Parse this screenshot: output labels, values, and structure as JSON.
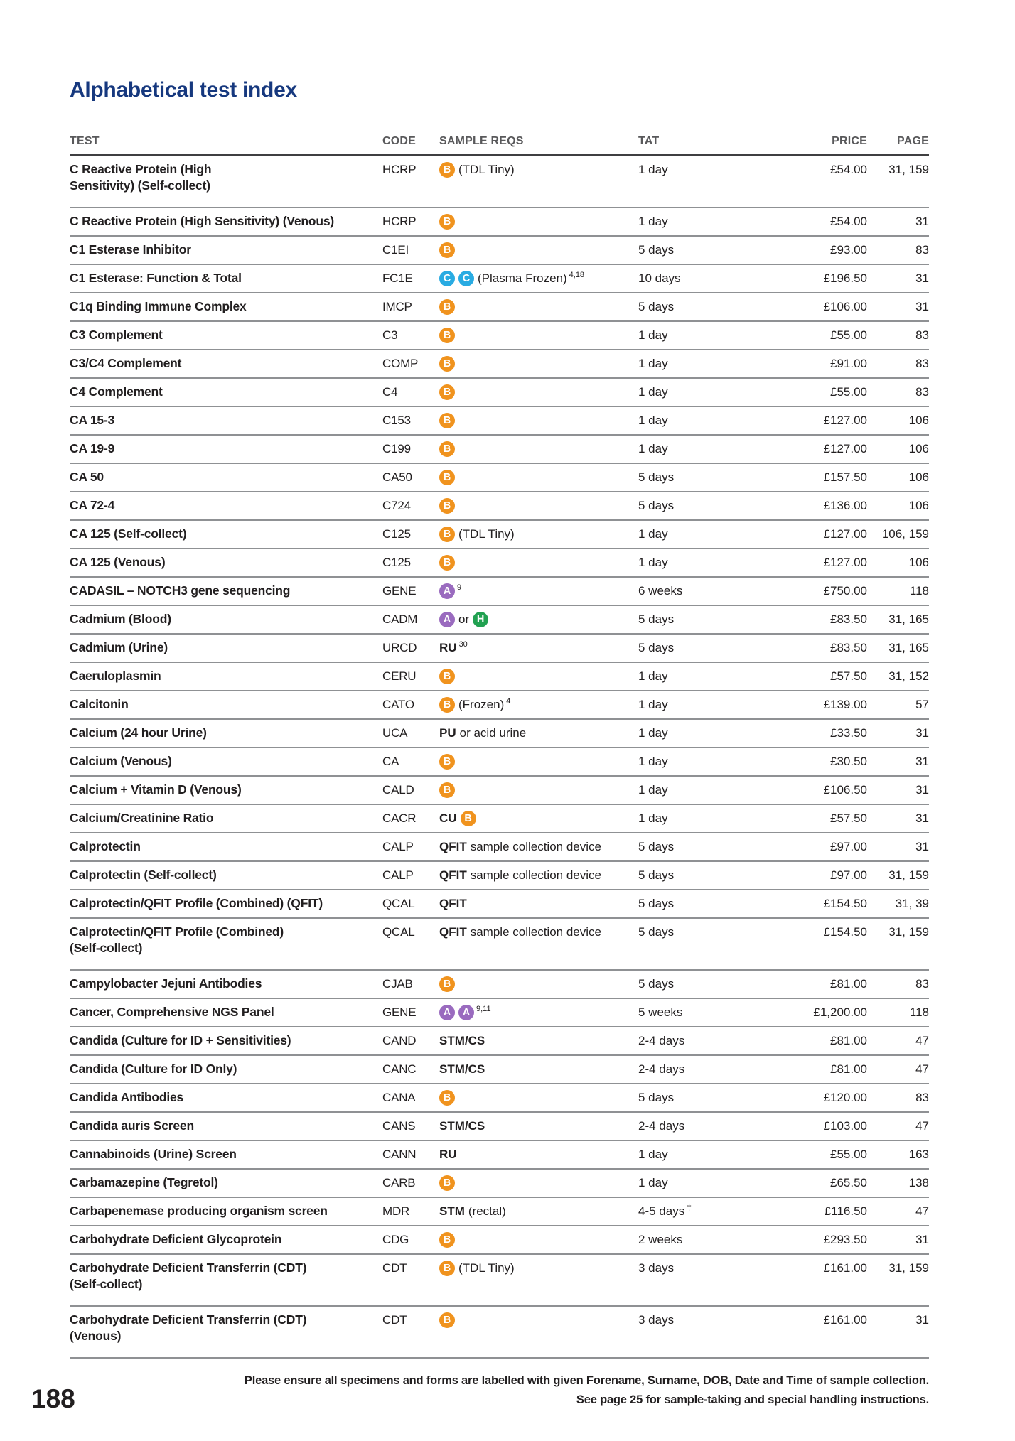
{
  "page": {
    "title": "Alphabetical test index",
    "page_number": "188",
    "footer_line1": "Please ensure all specimens and forms are labelled with given Forename, Surname, DOB, Date and Time of sample collection.",
    "footer_line2": "See page 25 for sample-taking and special handling instructions."
  },
  "colors": {
    "title_blue": "#16387E",
    "header_gray": "#59595B",
    "text_black": "#221F20",
    "icon_orange": "#F0931E",
    "icon_cyan": "#29ABE2",
    "icon_purple": "#9A6BBF",
    "icon_green": "#21A151"
  },
  "icons_legend": {
    "B": "blood-sample-icon",
    "C": "plasma-frozen-sample-icon",
    "A": "special-sample-icon",
    "H": "alternate-sample-icon"
  },
  "table": {
    "headers": [
      "TEST",
      "CODE",
      "SAMPLE REQS",
      "TAT",
      "PRICE",
      "PAGE"
    ],
    "rows": [
      {
        "name": "C Reactive Protein (High\nSensitivity) (Self-collect)",
        "code": "HCRP",
        "sample": [
          {
            "t": "i",
            "v": "B",
            "c": "orange"
          },
          {
            "t": "x",
            "v": "(TDL Tiny)"
          }
        ],
        "tat": "1 day",
        "price": "£54.00",
        "page": "31, 159"
      },
      {
        "name": "C Reactive Protein (High Sensitivity) (Venous)",
        "code": "HCRP",
        "sample": [
          {
            "t": "i",
            "v": "B",
            "c": "orange"
          }
        ],
        "tat": "1 day",
        "price": "£54.00",
        "page": "31"
      },
      {
        "name": "C1 Esterase Inhibitor",
        "code": "C1EI",
        "sample": [
          {
            "t": "i",
            "v": "B",
            "c": "orange"
          }
        ],
        "tat": "5 days",
        "price": "£93.00",
        "page": "83"
      },
      {
        "name": "C1 Esterase: Function & Total",
        "code": "FC1E",
        "sample": [
          {
            "t": "i",
            "v": "C",
            "c": "cyan"
          },
          {
            "t": "i",
            "v": "C",
            "c": "cyan"
          },
          {
            "t": "x",
            "v": "(Plasma Frozen)"
          },
          {
            "t": "s",
            "v": "4,18"
          }
        ],
        "tat": "10 days",
        "price": "£196.50",
        "page": "31"
      },
      {
        "name": "C1q Binding Immune Complex",
        "code": "IMCP",
        "sample": [
          {
            "t": "i",
            "v": "B",
            "c": "orange"
          }
        ],
        "tat": "5 days",
        "price": "£106.00",
        "page": "31"
      },
      {
        "name": "C3 Complement",
        "code": "C3",
        "sample": [
          {
            "t": "i",
            "v": "B",
            "c": "orange"
          }
        ],
        "tat": "1 day",
        "price": "£55.00",
        "page": "83"
      },
      {
        "name": "C3/C4 Complement",
        "code": "COMP",
        "sample": [
          {
            "t": "i",
            "v": "B",
            "c": "orange"
          }
        ],
        "tat": "1 day",
        "price": "£91.00",
        "page": "83"
      },
      {
        "name": "C4 Complement",
        "code": "C4",
        "sample": [
          {
            "t": "i",
            "v": "B",
            "c": "orange"
          }
        ],
        "tat": "1 day",
        "price": "£55.00",
        "page": "83"
      },
      {
        "name": "CA 15-3",
        "code": "C153",
        "sample": [
          {
            "t": "i",
            "v": "B",
            "c": "orange"
          }
        ],
        "tat": "1 day",
        "price": "£127.00",
        "page": "106"
      },
      {
        "name": "CA 19-9",
        "code": "C199",
        "sample": [
          {
            "t": "i",
            "v": "B",
            "c": "orange"
          }
        ],
        "tat": "1 day",
        "price": "£127.00",
        "page": "106"
      },
      {
        "name": "CA 50",
        "code": "CA50",
        "sample": [
          {
            "t": "i",
            "v": "B",
            "c": "orange"
          }
        ],
        "tat": "5 days",
        "price": "£157.50",
        "page": "106"
      },
      {
        "name": "CA 72-4",
        "code": "C724",
        "sample": [
          {
            "t": "i",
            "v": "B",
            "c": "orange"
          }
        ],
        "tat": "5 days",
        "price": "£136.00",
        "page": "106"
      },
      {
        "name": "CA 125 (Self-collect)",
        "code": "C125",
        "sample": [
          {
            "t": "i",
            "v": "B",
            "c": "orange"
          },
          {
            "t": "x",
            "v": "(TDL Tiny)"
          }
        ],
        "tat": "1 day",
        "price": "£127.00",
        "page": "106, 159"
      },
      {
        "name": "CA 125 (Venous)",
        "code": "C125",
        "sample": [
          {
            "t": "i",
            "v": "B",
            "c": "orange"
          }
        ],
        "tat": "1 day",
        "price": "£127.00",
        "page": "106"
      },
      {
        "name": "CADASIL – NOTCH3 gene sequencing",
        "code": "GENE",
        "sample": [
          {
            "t": "i",
            "v": "A",
            "c": "purple"
          },
          {
            "t": "s",
            "v": "9"
          }
        ],
        "tat": "6 weeks",
        "price": "£750.00",
        "page": "118"
      },
      {
        "name": "Cadmium (Blood)",
        "code": "CADM",
        "sample": [
          {
            "t": "i",
            "v": "A",
            "c": "purple"
          },
          {
            "t": "x",
            "v": "or"
          },
          {
            "t": "i",
            "v": "H",
            "c": "green"
          }
        ],
        "tat": "5 days",
        "price": "£83.50",
        "page": "31, 165"
      },
      {
        "name": "Cadmium (Urine)",
        "code": "URCD",
        "sample": [
          {
            "t": "b",
            "v": "RU"
          },
          {
            "t": "s",
            "v": "30"
          }
        ],
        "tat": "5 days",
        "price": "£83.50",
        "page": "31, 165"
      },
      {
        "name": "Caeruloplasmin",
        "code": "CERU",
        "sample": [
          {
            "t": "i",
            "v": "B",
            "c": "orange"
          }
        ],
        "tat": "1 day",
        "price": "£57.50",
        "page": "31, 152"
      },
      {
        "name": "Calcitonin",
        "code": "CATO",
        "sample": [
          {
            "t": "i",
            "v": "B",
            "c": "orange"
          },
          {
            "t": "x",
            "v": "(Frozen)"
          },
          {
            "t": "s",
            "v": "4"
          }
        ],
        "tat": "1 day",
        "price": "£139.00",
        "page": "57"
      },
      {
        "name": "Calcium (24 hour Urine)",
        "code": "UCA",
        "sample": [
          {
            "t": "b",
            "v": "PU"
          },
          {
            "t": "x",
            "v": "or acid urine"
          }
        ],
        "tat": "1 day",
        "price": "£33.50",
        "page": "31"
      },
      {
        "name": "Calcium (Venous)",
        "code": "CA",
        "sample": [
          {
            "t": "i",
            "v": "B",
            "c": "orange"
          }
        ],
        "tat": "1 day",
        "price": "£30.50",
        "page": "31"
      },
      {
        "name": "Calcium + Vitamin D (Venous)",
        "code": "CALD",
        "sample": [
          {
            "t": "i",
            "v": "B",
            "c": "orange"
          }
        ],
        "tat": "1 day",
        "price": "£106.50",
        "page": "31"
      },
      {
        "name": "Calcium/Creatinine Ratio",
        "code": "CACR",
        "sample": [
          {
            "t": "b",
            "v": "CU"
          },
          {
            "t": "i",
            "v": "B",
            "c": "orange"
          }
        ],
        "tat": "1 day",
        "price": "£57.50",
        "page": "31"
      },
      {
        "name": "Calprotectin",
        "code": "CALP",
        "sample": [
          {
            "t": "b",
            "v": "QFIT"
          },
          {
            "t": "x",
            "v": "sample collection device"
          }
        ],
        "tat": "5 days",
        "price": "£97.00",
        "page": "31"
      },
      {
        "name": "Calprotectin (Self-collect)",
        "code": "CALP",
        "sample": [
          {
            "t": "b",
            "v": "QFIT"
          },
          {
            "t": "x",
            "v": "sample collection device"
          }
        ],
        "tat": "5 days",
        "price": "£97.00",
        "page": "31, 159"
      },
      {
        "name": "Calprotectin/QFIT Profile (Combined) (QFIT)",
        "code": "QCAL",
        "sample": [
          {
            "t": "b",
            "v": "QFIT"
          }
        ],
        "tat": "5 days",
        "price": "£154.50",
        "page": "31, 39"
      },
      {
        "name": "Calprotectin/QFIT Profile (Combined)\n(Self-collect)",
        "code": "QCAL",
        "sample": [
          {
            "t": "b",
            "v": "QFIT"
          },
          {
            "t": "x",
            "v": "sample collection device"
          }
        ],
        "tat": "5 days",
        "price": "£154.50",
        "page": "31, 159"
      },
      {
        "name": "Campylobacter Jejuni Antibodies",
        "code": "CJAB",
        "sample": [
          {
            "t": "i",
            "v": "B",
            "c": "orange"
          }
        ],
        "tat": "5 days",
        "price": "£81.00",
        "page": "83"
      },
      {
        "name": "Cancer, Comprehensive NGS Panel",
        "code": "GENE",
        "sample": [
          {
            "t": "i",
            "v": "A",
            "c": "purple"
          },
          {
            "t": "i",
            "v": "A",
            "c": "purple"
          },
          {
            "t": "s",
            "v": "9,11"
          }
        ],
        "tat": "5 weeks",
        "price": "£1,200.00",
        "page": "118"
      },
      {
        "name": "Candida (Culture for ID + Sensitivities)",
        "code": "CAND",
        "sample": [
          {
            "t": "b",
            "v": "STM/CS"
          }
        ],
        "tat": "2-4 days",
        "price": "£81.00",
        "page": "47"
      },
      {
        "name": "Candida (Culture for ID Only)",
        "code": "CANC",
        "sample": [
          {
            "t": "b",
            "v": "STM/CS"
          }
        ],
        "tat": "2-4 days",
        "price": "£81.00",
        "page": "47"
      },
      {
        "name": "Candida Antibodies",
        "code": "CANA",
        "sample": [
          {
            "t": "i",
            "v": "B",
            "c": "orange"
          }
        ],
        "tat": "5 days",
        "price": "£120.00",
        "page": "83"
      },
      {
        "name": "Candida auris Screen",
        "code": "CANS",
        "sample": [
          {
            "t": "b",
            "v": "STM/CS"
          }
        ],
        "tat": "2-4 days",
        "price": "£103.00",
        "page": "47"
      },
      {
        "name": "Cannabinoids (Urine) Screen",
        "code": "CANN",
        "sample": [
          {
            "t": "b",
            "v": "RU"
          }
        ],
        "tat": "1 day",
        "price": "£55.00",
        "page": "163"
      },
      {
        "name": "Carbamazepine (Tegretol)",
        "code": "CARB",
        "sample": [
          {
            "t": "i",
            "v": "B",
            "c": "orange"
          }
        ],
        "tat": "1 day",
        "price": "£65.50",
        "page": "138"
      },
      {
        "name": "Carbapenemase producing organism screen",
        "code": "MDR",
        "sample": [
          {
            "t": "b",
            "v": "STM"
          },
          {
            "t": "x",
            "v": "(rectal)"
          }
        ],
        "tat": "4-5 days",
        "tat_sup": "‡",
        "price": "£116.50",
        "page": "47"
      },
      {
        "name": "Carbohydrate Deficient Glycoprotein",
        "code": "CDG",
        "sample": [
          {
            "t": "i",
            "v": "B",
            "c": "orange"
          }
        ],
        "tat": "2 weeks",
        "price": "£293.50",
        "page": "31"
      },
      {
        "name": "Carbohydrate Deficient Transferrin (CDT)\n(Self-collect)",
        "code": "CDT",
        "sample": [
          {
            "t": "i",
            "v": "B",
            "c": "orange"
          },
          {
            "t": "x",
            "v": "(TDL Tiny)"
          }
        ],
        "tat": "3 days",
        "price": "£161.00",
        "page": "31, 159"
      },
      {
        "name": "Carbohydrate Deficient Transferrin (CDT)\n(Venous)",
        "code": "CDT",
        "sample": [
          {
            "t": "i",
            "v": "B",
            "c": "orange"
          }
        ],
        "tat": "3 days",
        "price": "£161.00",
        "page": "31"
      }
    ]
  }
}
